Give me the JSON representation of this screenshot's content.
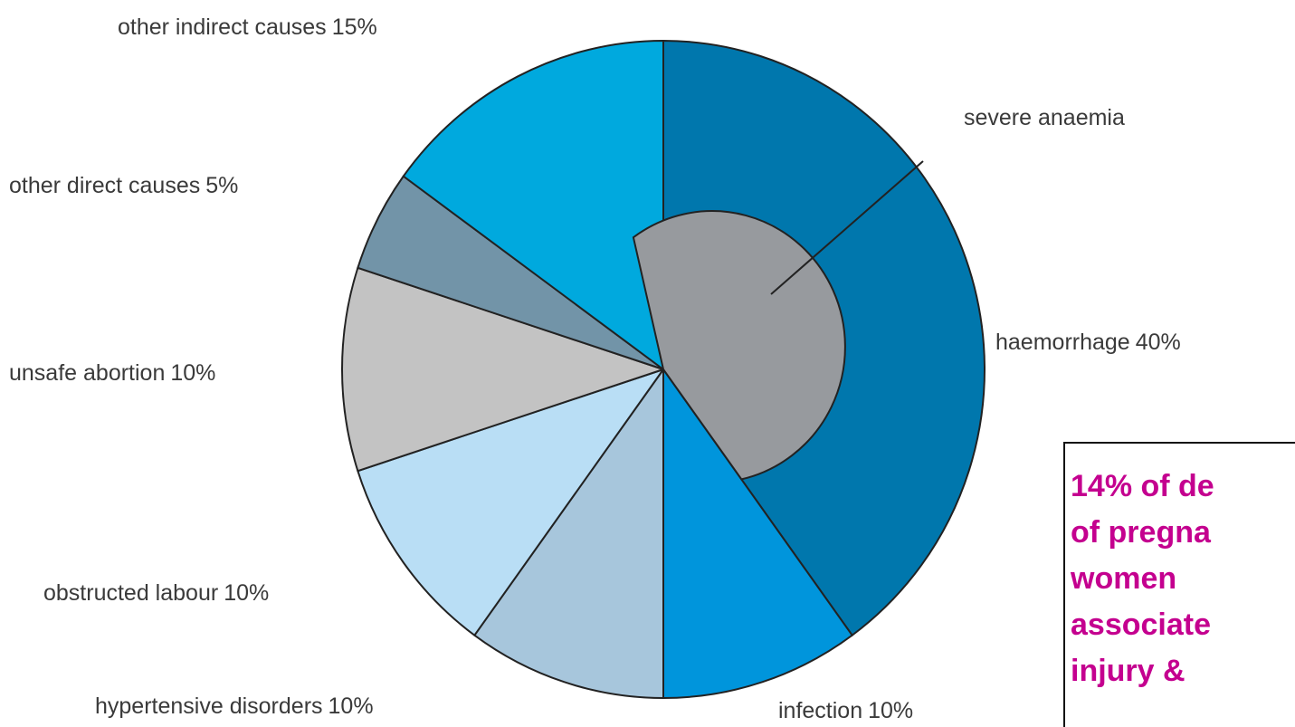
{
  "chart_data": {
    "type": "pie",
    "categories": [
      "haemorrhage",
      "infection",
      "hypertensive disorders",
      "obstructed labour",
      "unsafe abortion",
      "other direct causes",
      "other indirect causes"
    ],
    "values": [
      40,
      10,
      10,
      10,
      10,
      5,
      15
    ],
    "value_labels": [
      "40%",
      "10%",
      "10%",
      "10%",
      "10%",
      "5%",
      "15%"
    ],
    "colors": [
      "#0077ad",
      "#0095dc",
      "#a7c6dc",
      "#b9def5",
      "#c3c3c3",
      "#7294a8",
      "#00a9de"
    ],
    "annotations": [
      "severe anaemia"
    ],
    "note": [
      "14% of de",
      "of pregna",
      "women",
      "associate",
      "injury &"
    ]
  }
}
